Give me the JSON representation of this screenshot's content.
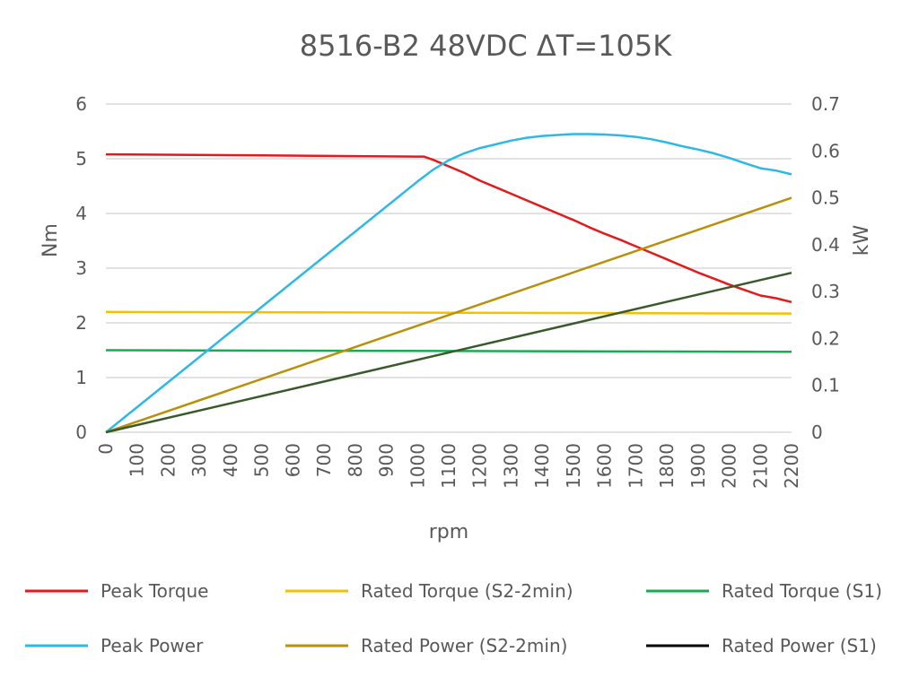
{
  "chart_data": {
    "type": "line",
    "title": "8516-B2 48VDC ΔT=105K",
    "xlabel": "rpm",
    "ylabel": "Nm",
    "y2label": "kW",
    "xlim": [
      0,
      2200
    ],
    "ylim": [
      0,
      6
    ],
    "y2lim": [
      0,
      0.7
    ],
    "x_ticks": [
      "0",
      "100",
      "200",
      "300",
      "400",
      "500",
      "600",
      "700",
      "800",
      "900",
      "1000",
      "1100",
      "1200",
      "1300",
      "1400",
      "1500",
      "1600",
      "1700",
      "1800",
      "1900",
      "2000",
      "2100",
      "2200"
    ],
    "y_ticks": [
      "0",
      "1",
      "2",
      "3",
      "4",
      "5",
      "6"
    ],
    "y2_ticks": [
      "0",
      "0.1",
      "0.2",
      "0.3",
      "0.4",
      "0.5",
      "0.6",
      "0.7"
    ],
    "grid": true,
    "legend_position": "bottom",
    "series": [
      {
        "name": "Peak Torque",
        "axis": "left",
        "color": "#e31a1c",
        "x": [
          0,
          500,
          1000,
          1020,
          1050,
          1100,
          1150,
          1200,
          1250,
          1300,
          1350,
          1400,
          1450,
          1500,
          1550,
          1600,
          1650,
          1700,
          1750,
          1800,
          1850,
          1900,
          1950,
          2000,
          2050,
          2100,
          2150,
          2200
        ],
        "values": [
          5.08,
          5.06,
          5.04,
          5.04,
          4.98,
          4.86,
          4.74,
          4.6,
          4.48,
          4.36,
          4.24,
          4.12,
          4.0,
          3.88,
          3.75,
          3.63,
          3.52,
          3.4,
          3.28,
          3.16,
          3.04,
          2.92,
          2.81,
          2.7,
          2.6,
          2.5,
          2.45,
          2.38
        ]
      },
      {
        "name": "Rated Torque (S2-2min)",
        "axis": "left",
        "color": "#f2c200",
        "x": [
          0,
          2200
        ],
        "values": [
          2.2,
          2.17
        ]
      },
      {
        "name": "Rated Torque (S1)",
        "axis": "left",
        "color": "#1aaa55",
        "x": [
          0,
          2200
        ],
        "values": [
          1.5,
          1.47
        ]
      },
      {
        "name": "Peak Power",
        "axis": "right",
        "color": "#2db8e6",
        "x": [
          0,
          1000,
          1050,
          1100,
          1150,
          1200,
          1250,
          1300,
          1350,
          1400,
          1450,
          1500,
          1550,
          1600,
          1650,
          1700,
          1750,
          1800,
          1850,
          1900,
          1950,
          2000,
          2050,
          2100,
          2150,
          2200
        ],
        "values": [
          0,
          0.535,
          0.56,
          0.58,
          0.595,
          0.606,
          0.614,
          0.622,
          0.628,
          0.632,
          0.634,
          0.636,
          0.636,
          0.635,
          0.633,
          0.63,
          0.625,
          0.618,
          0.61,
          0.603,
          0.595,
          0.585,
          0.574,
          0.563,
          0.558,
          0.55
        ]
      },
      {
        "name": "Rated Power (S2-2min)",
        "axis": "right",
        "color": "#b8900a",
        "x": [
          0,
          2200
        ],
        "values": [
          0,
          0.5
        ]
      },
      {
        "name": "Rated Power (S1)",
        "axis": "right",
        "color": "#3a5a2a",
        "legend_color": "#000000",
        "x": [
          0,
          2200
        ],
        "values": [
          0,
          0.34
        ]
      }
    ],
    "legend": [
      {
        "label": "Peak Torque",
        "color": "#e31a1c"
      },
      {
        "label": "Rated Torque (S2-2min)",
        "color": "#f2c200"
      },
      {
        "label": "Rated Torque (S1)",
        "color": "#1aaa55"
      },
      {
        "label": "Peak Power",
        "color": "#2db8e6"
      },
      {
        "label": "Rated Power (S2-2min)",
        "color": "#b8900a"
      },
      {
        "label": "Rated Power (S1)",
        "color": "#000000"
      }
    ]
  }
}
